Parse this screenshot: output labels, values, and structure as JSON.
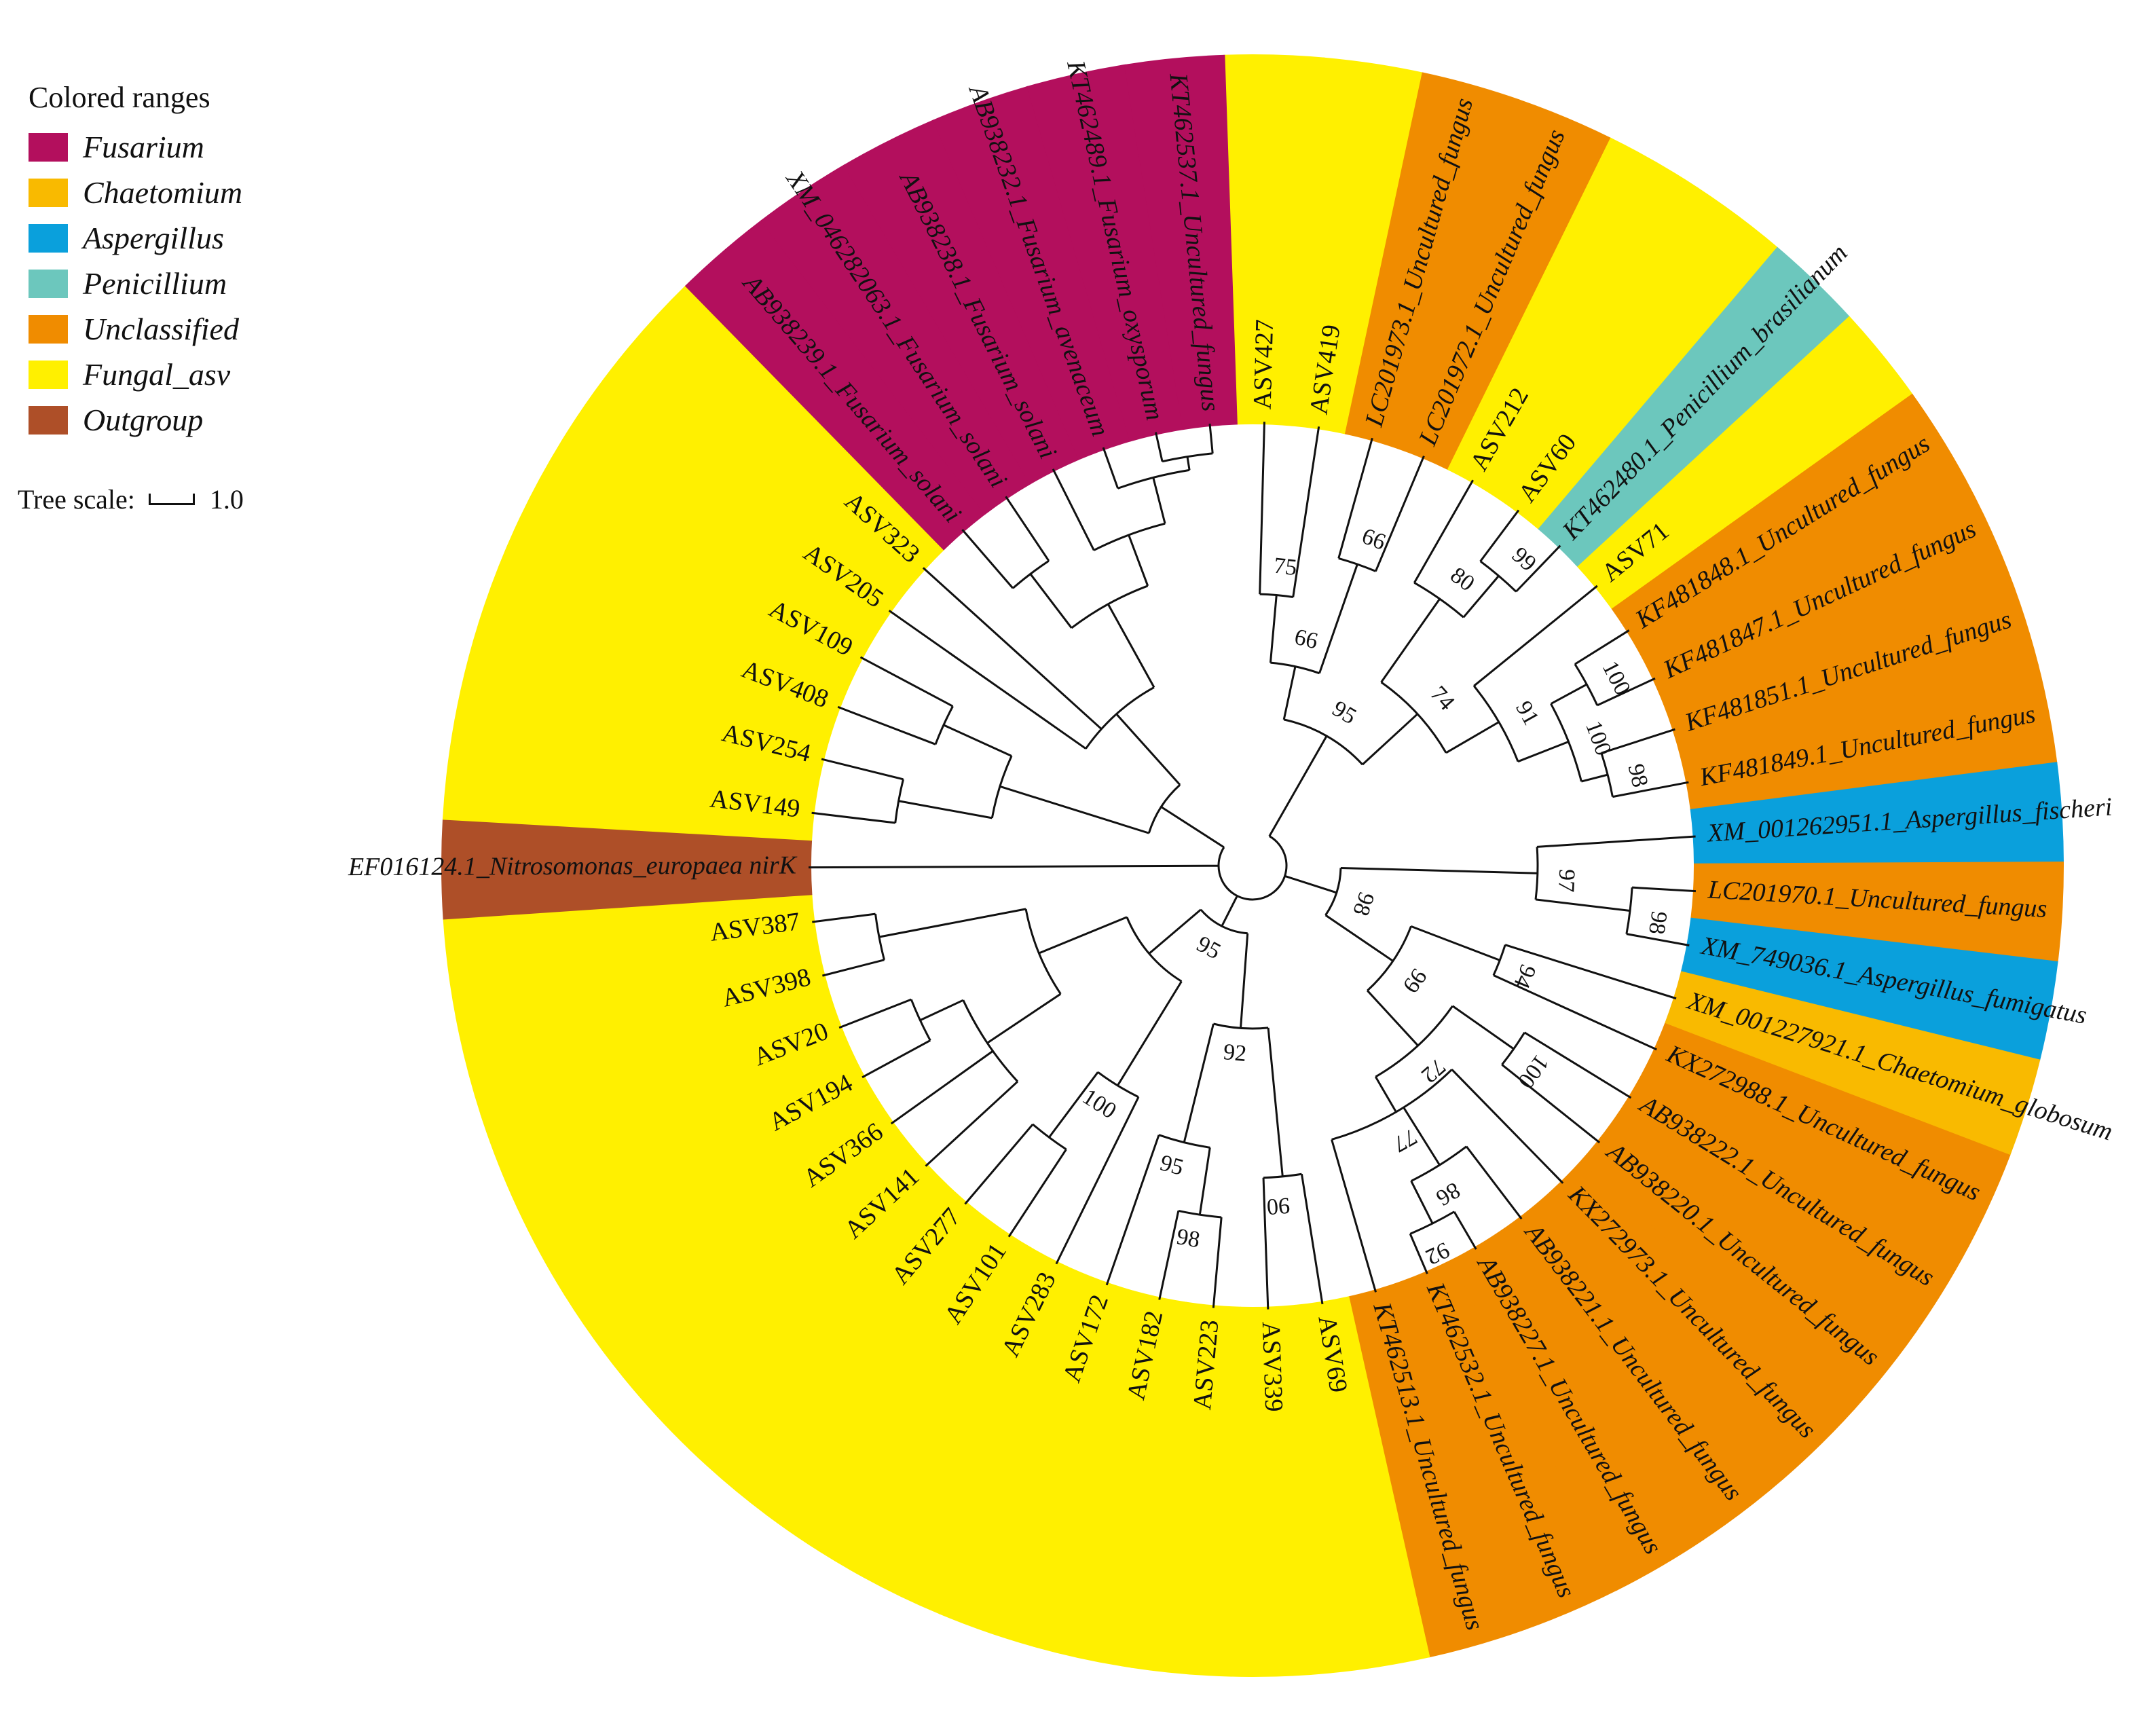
{
  "legend": {
    "title": "Colored ranges",
    "items": [
      {
        "key": "fusarium",
        "label": "Fusarium",
        "color": "#b30f5d"
      },
      {
        "key": "chaetomium",
        "label": "Chaetomium",
        "color": "#f9ba00"
      },
      {
        "key": "aspergillus",
        "label": "Aspergillus",
        "color": "#0aa0dc"
      },
      {
        "key": "penicillium",
        "label": "Penicillium",
        "color": "#6cc7bd"
      },
      {
        "key": "unclassified",
        "label": "Unclassified",
        "color": "#f08c00"
      },
      {
        "key": "fungal_asv",
        "label": "Fungal_asv",
        "color": "#fff000"
      },
      {
        "key": "outgroup",
        "label": "Outgroup",
        "color": "#ae4f28"
      }
    ]
  },
  "tree_scale": {
    "label": "Tree scale:",
    "value": "1.0"
  },
  "leaves": [
    {
      "label": "ASV427",
      "group": "fungal_asv",
      "italic": false
    },
    {
      "label": "ASV419",
      "group": "fungal_asv",
      "italic": false
    },
    {
      "label": "LC201973.1_Uncultured_fungus",
      "group": "unclassified",
      "italic": true
    },
    {
      "label": "LC201972.1_Uncultured_fungus",
      "group": "unclassified",
      "italic": true
    },
    {
      "label": "ASV212",
      "group": "fungal_asv",
      "italic": false
    },
    {
      "label": "ASV60",
      "group": "fungal_asv",
      "italic": false
    },
    {
      "label": "KT462480.1_Penicillium_brasilianum",
      "group": "penicillium",
      "italic": true
    },
    {
      "label": "ASV71",
      "group": "fungal_asv",
      "italic": false
    },
    {
      "label": "KF481848.1_Uncultured_fungus",
      "group": "unclassified",
      "italic": true
    },
    {
      "label": "KF481847.1_Uncultured_fungus",
      "group": "unclassified",
      "italic": true
    },
    {
      "label": "KF481851.1_Uncultured_fungus",
      "group": "unclassified",
      "italic": true
    },
    {
      "label": "KF481849.1_Uncultured_fungus",
      "group": "unclassified",
      "italic": true
    },
    {
      "label": "XM_001262951.1_Aspergillus_fischeri",
      "group": "aspergillus",
      "italic": true
    },
    {
      "label": "LC201970.1_Uncultured_fungus",
      "group": "unclassified",
      "italic": true
    },
    {
      "label": "XM_749036.1_Aspergillus_fumigatus",
      "group": "aspergillus",
      "italic": true
    },
    {
      "label": "XM_001227921.1_Chaetomium_globosum",
      "group": "chaetomium",
      "italic": true
    },
    {
      "label": "KX272988.1_Uncultured_fungus",
      "group": "unclassified",
      "italic": true
    },
    {
      "label": "AB938222.1_Uncultured_fungus",
      "group": "unclassified",
      "italic": true
    },
    {
      "label": "AB938220.1_Uncultured_fungus",
      "group": "unclassified",
      "italic": true
    },
    {
      "label": "KX272973.1_Uncultured_fungus",
      "group": "unclassified",
      "italic": true
    },
    {
      "label": "AB938221.1_Uncultured_fungus",
      "group": "unclassified",
      "italic": true
    },
    {
      "label": "AB938227.1_Uncultured_fungus",
      "group": "unclassified",
      "italic": true
    },
    {
      "label": "KT462532.1_Uncultured_fungus",
      "group": "unclassified",
      "italic": true
    },
    {
      "label": "KT462513.1_Uncultured_fungus",
      "group": "unclassified",
      "italic": true
    },
    {
      "label": "ASV69",
      "group": "fungal_asv",
      "italic": false
    },
    {
      "label": "ASV339",
      "group": "fungal_asv",
      "italic": false
    },
    {
      "label": "ASV223",
      "group": "fungal_asv",
      "italic": false
    },
    {
      "label": "ASV182",
      "group": "fungal_asv",
      "italic": false
    },
    {
      "label": "ASV172",
      "group": "fungal_asv",
      "italic": false
    },
    {
      "label": "ASV283",
      "group": "fungal_asv",
      "italic": false
    },
    {
      "label": "ASV101",
      "group": "fungal_asv",
      "italic": false
    },
    {
      "label": "ASV277",
      "group": "fungal_asv",
      "italic": false
    },
    {
      "label": "ASV141",
      "group": "fungal_asv",
      "italic": false
    },
    {
      "label": "ASV366",
      "group": "fungal_asv",
      "italic": false
    },
    {
      "label": "ASV194",
      "group": "fungal_asv",
      "italic": false
    },
    {
      "label": "ASV20",
      "group": "fungal_asv",
      "italic": false
    },
    {
      "label": "ASV398",
      "group": "fungal_asv",
      "italic": false
    },
    {
      "label": "ASV387",
      "group": "fungal_asv",
      "italic": false
    },
    {
      "label": "EF016124.1_Nitrosomonas_europaea nirK",
      "group": "outgroup",
      "italic": true
    },
    {
      "label": "ASV149",
      "group": "fungal_asv",
      "italic": false
    },
    {
      "label": "ASV254",
      "group": "fungal_asv",
      "italic": false
    },
    {
      "label": "ASV408",
      "group": "fungal_asv",
      "italic": false
    },
    {
      "label": "ASV109",
      "group": "fungal_asv",
      "italic": false
    },
    {
      "label": "ASV205",
      "group": "fungal_asv",
      "italic": false
    },
    {
      "label": "ASV323",
      "group": "fungal_asv",
      "italic": false
    },
    {
      "label": "AB938239.1_Fusarium_solani",
      "group": "fusarium",
      "italic": true
    },
    {
      "label": "XM_046282063.1_Fusarium_solani",
      "group": "fusarium",
      "italic": true
    },
    {
      "label": "AB938238.1_Fusarium_solani",
      "group": "fusarium",
      "italic": true
    },
    {
      "label": "AB938232.1_Fusarium_avenaceum",
      "group": "fusarium",
      "italic": true
    },
    {
      "label": "KT462489.1_Fusarium_oxysporum",
      "group": "fusarium",
      "italic": true
    },
    {
      "label": "KT462537.1_Uncultured_fungus",
      "group": "fusarium",
      "italic": true
    }
  ],
  "bootstrap_values": [
    "75",
    "66",
    "66",
    "95",
    "80",
    "99",
    "74",
    "91",
    "100",
    "100",
    "98",
    "97",
    "98",
    "98",
    "94",
    "99",
    "100",
    "72",
    "86",
    "77",
    "92",
    "90",
    "92",
    "98",
    "95",
    "95",
    "100"
  ]
}
